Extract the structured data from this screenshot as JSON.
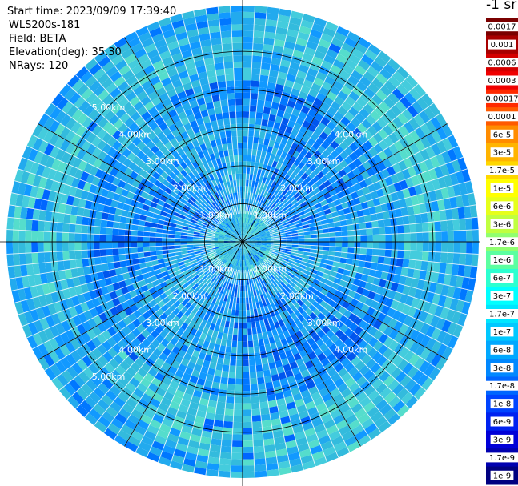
{
  "header": {
    "start_time": "Start time: 2023/09/09 17:39:40",
    "instrument": "WLS200s-181",
    "field": "Field: BETA",
    "elevation": "Elevation(deg): 35.30",
    "nrays": "NRays: 120"
  },
  "colorbar": {
    "unit": "-1 sr",
    "ticks": [
      "0.0017",
      "0.001",
      "0.0006",
      "0.0003",
      "0.00017",
      "0.0001",
      "6e-5",
      "3e-5",
      "1.7e-5",
      "1e-5",
      "6e-6",
      "3e-6",
      "1.7e-6",
      "1e-6",
      "6e-7",
      "3e-7",
      "1.7e-7",
      "1e-7",
      "6e-8",
      "3e-8",
      "1.7e-8",
      "1e-8",
      "6e-9",
      "3e-9",
      "1.7e-9",
      "1e-9"
    ],
    "colors": [
      "#7a0000",
      "#a80000",
      "#d40000",
      "#f00000",
      "#ff2a00",
      "#ff5a00",
      "#ff8c00",
      "#ffb400",
      "#ffd700",
      "#ffff00",
      "#e6ff1a",
      "#c0ff40",
      "#90ff70",
      "#5cffa0",
      "#2cffd0",
      "#00ffff",
      "#00e6ff",
      "#00c8ff",
      "#00a8ff",
      "#0088ff",
      "#0066ff",
      "#0044ff",
      "#0022f0",
      "#0000d8",
      "#0000b0",
      "#000080"
    ]
  },
  "chart_data": {
    "type": "heatmap",
    "projection": "polar PPI",
    "field": "BETA",
    "nrays": 120,
    "range_rings_km": [
      1.0,
      2.0,
      3.0,
      4.0,
      5.0
    ],
    "ring_labels": [
      "1.00km",
      "2.00km",
      "3.00km",
      "4.00km",
      "5.00km"
    ],
    "max_range_km": 6.2,
    "azimuth_lines_deg": [
      0,
      30,
      60,
      90,
      120,
      150,
      180,
      210,
      240,
      270,
      300,
      330
    ],
    "gates_per_ray": 38,
    "value_range": [
      1e-09,
      0.0017
    ]
  }
}
